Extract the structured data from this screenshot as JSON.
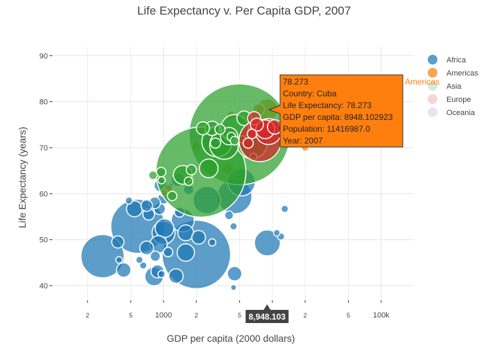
{
  "chart_data": {
    "type": "scatter",
    "title": "Life Expectancy v. Per Capita GDP, 2007",
    "xlabel": "GDP per capita (2000 dollars)",
    "ylabel": "Life Expectancy (years)",
    "x_scale": "log",
    "xlim": [
      100,
      200000
    ],
    "ylim": [
      37,
      92
    ],
    "x_ticks": [
      {
        "value": 200,
        "label": "2",
        "minor": true
      },
      {
        "value": 500,
        "label": "5",
        "minor": true
      },
      {
        "value": 1000,
        "label": "1000",
        "minor": false
      },
      {
        "value": 2000,
        "label": "2",
        "minor": true
      },
      {
        "value": 5000,
        "label": "5",
        "minor": true
      },
      {
        "value": 10000,
        "label": "",
        "minor": true
      },
      {
        "value": 20000,
        "label": "2",
        "minor": true
      },
      {
        "value": 50000,
        "label": "5",
        "minor": true
      },
      {
        "value": 100000,
        "label": "100k",
        "minor": false
      }
    ],
    "y_ticks": [
      40,
      50,
      60,
      70,
      80,
      90
    ],
    "grid": true,
    "legend_position": "right",
    "colors": {
      "Africa": "#1f77b4",
      "Americas": "#ff7f0e",
      "Asia": "#2ca02c",
      "Europe": "#d62728",
      "Oceania": "#9467bd"
    },
    "legend": [
      {
        "name": "Africa",
        "dimmed": false
      },
      {
        "name": "Americas",
        "dimmed": false
      },
      {
        "name": "Asia",
        "dimmed": true
      },
      {
        "name": "Europe",
        "dimmed": true
      },
      {
        "name": "Oceania",
        "dimmed": true
      }
    ],
    "series": [
      {
        "name": "Africa",
        "points": [
          [
            275,
            46.4,
            6.0
          ],
          [
            580,
            52.9,
            7.5
          ],
          [
            2000,
            46.8,
            9.5
          ],
          [
            4500,
            59.4,
            4.8
          ],
          [
            5200,
            62.5,
            3.8
          ],
          [
            9000,
            49.3,
            3.6
          ],
          [
            820,
            42.0,
            2.6
          ],
          [
            1000,
            51.5,
            3.2
          ],
          [
            2500,
            58.6,
            3.8
          ],
          [
            1500,
            54.2,
            3.2
          ],
          [
            1020,
            52.5,
            2.6
          ],
          [
            900,
            49.0,
            2.4
          ],
          [
            1600,
            47.2,
            2.4
          ],
          [
            1300,
            42.1,
            2.0
          ],
          [
            1600,
            51.5,
            2.2
          ],
          [
            2100,
            50.5,
            1.9
          ],
          [
            880,
            43.1,
            1.8
          ],
          [
            430,
            43.4,
            2.0
          ],
          [
            380,
            49.5,
            1.7
          ],
          [
            700,
            48.2,
            1.9
          ],
          [
            730,
            55.5,
            1.6
          ],
          [
            540,
            56.7,
            2.2
          ],
          [
            920,
            56.7,
            1.6
          ],
          [
            1000,
            59.0,
            1.6
          ],
          [
            1400,
            56.0,
            1.4
          ],
          [
            940,
            61.8,
            1.8
          ],
          [
            1350,
            63.0,
            1.8
          ],
          [
            1700,
            60.9,
            1.4
          ],
          [
            830,
            58.0,
            1.6
          ],
          [
            700,
            57.4,
            1.6
          ],
          [
            4000,
            55.3,
            1.2
          ],
          [
            1100,
            47.3,
            1.3
          ],
          [
            650,
            44.4,
            1.0
          ],
          [
            840,
            46.4,
            1.4
          ],
          [
            2800,
            49.4,
            1.0
          ],
          [
            4400,
            52.9,
            1.0
          ],
          [
            13000,
            56.7,
            1.0
          ],
          [
            12000,
            50.7,
            1.0
          ],
          [
            11000,
            51.5,
            0.9
          ],
          [
            4500,
            42.6,
            2.0
          ],
          [
            4400,
            39.6,
            0.8
          ],
          [
            600,
            45.6,
            1.0
          ],
          [
            390,
            45.6,
            0.9
          ],
          [
            960,
            42.5,
            1.0
          ],
          [
            480,
            58.5,
            1.0
          ],
          [
            2500,
            71.1,
            1.2
          ],
          [
            3200,
            72.9,
            1.0
          ],
          [
            1150,
            61.6,
            0.9
          ]
        ]
      },
      {
        "name": "Americas",
        "points": [
          [
            8948.103,
            78.273,
            3.0
          ],
          [
            7500,
            78.3,
            1.6
          ],
          [
            3900,
            65.5,
            1.6
          ],
          [
            1100,
            61.0,
            1.2
          ],
          [
            1000,
            60.2,
            1.0
          ],
          [
            4200,
            77.0,
            1.2
          ],
          [
            6000,
            75.5,
            1.4
          ],
          [
            3400,
            72.8,
            1.2
          ],
          [
            2900,
            71.8,
            1.2
          ],
          [
            2000,
            70.3,
            1.2
          ],
          [
            9500,
            75.3,
            1.3
          ],
          [
            10500,
            75.5,
            1.1
          ],
          [
            12000,
            73.7,
            1.0
          ],
          [
            16000,
            72.0,
            1.0
          ],
          [
            20000,
            70.0,
            1.0
          ]
        ]
      },
      {
        "name": "Asia",
        "points": [
          [
            5000,
            72.9,
            14.0
          ],
          [
            2200,
            64.7,
            12.5
          ],
          [
            3100,
            71.3,
            4.2
          ],
          [
            3600,
            70.6,
            4.0
          ],
          [
            6500,
            70.9,
            4.2
          ],
          [
            4500,
            74.2,
            3.8
          ],
          [
            2600,
            65.5,
            2.6
          ],
          [
            1500,
            64.1,
            2.6
          ],
          [
            4000,
            72.5,
            2.4
          ],
          [
            2800,
            74.2,
            2.0
          ],
          [
            2300,
            74.2,
            1.8
          ],
          [
            5500,
            76.4,
            2.0
          ],
          [
            3000,
            71.0,
            1.4
          ],
          [
            3300,
            74.0,
            1.4
          ],
          [
            1800,
            65.2,
            1.4
          ],
          [
            950,
            64.7,
            1.3
          ],
          [
            1700,
            62.7,
            1.2
          ],
          [
            800,
            64.0,
            1.2
          ],
          [
            1200,
            59.5,
            1.3
          ],
          [
            960,
            62.9,
            1.0
          ],
          [
            4200,
            72.4,
            1.2
          ],
          [
            4500,
            71.5,
            1.2
          ],
          [
            5300,
            71.8,
            1.0
          ],
          [
            6700,
            68.0,
            1.0
          ]
        ]
      },
      {
        "name": "Europe",
        "points": [
          [
            7700,
            71.5,
            5.8
          ],
          [
            9200,
            73.5,
            3.6
          ],
          [
            8600,
            74.0,
            2.6
          ],
          [
            10500,
            74.5,
            2.0
          ],
          [
            6800,
            76.4,
            1.8
          ],
          [
            7200,
            75.0,
            1.8
          ],
          [
            6000,
            71.0,
            1.4
          ],
          [
            6500,
            73.0,
            1.3
          ]
        ]
      }
    ],
    "hover": {
      "value": "78.273",
      "country": "Country: Cuba",
      "life_expectancy": "Life Expectancy: 78.273",
      "gdp": "GDP per capita: 8948.102923",
      "population": "Population: 11416987.0",
      "year": "Year: 2007",
      "trace_name": "Americas",
      "x_label": "8,948.103"
    }
  }
}
